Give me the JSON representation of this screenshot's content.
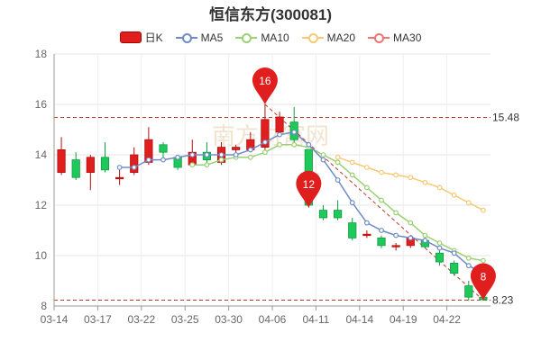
{
  "chart_data": {
    "type": "candlestick",
    "title": "恒信东方(300081)",
    "legend_position": "top-center",
    "grid": true,
    "ylim": [
      8,
      18
    ],
    "yticks": [
      "8",
      "10",
      "12",
      "14",
      "16",
      "18"
    ],
    "xtick_labels": [
      "03-14",
      "03-17",
      "03-22",
      "03-25",
      "03-30",
      "04-06",
      "04-11",
      "04-14",
      "04-19",
      "04-22"
    ],
    "xtick_index": [
      0,
      3,
      6,
      9,
      12,
      15,
      18,
      21,
      24,
      27
    ],
    "legend": [
      {
        "key": "k",
        "label": "日K",
        "color": "#e01e1e"
      },
      {
        "key": "ma5",
        "label": "MA5",
        "color": "#6e8bc8"
      },
      {
        "key": "ma10",
        "label": "MA10",
        "color": "#9ad173"
      },
      {
        "key": "ma20",
        "label": "MA20",
        "color": "#f7c974"
      },
      {
        "key": "ma30",
        "label": "MA30",
        "color": "#ef7373"
      }
    ],
    "candles": [
      {
        "o": 13.3,
        "c": 14.2,
        "h": 14.7,
        "l": 13.2
      },
      {
        "o": 13.8,
        "c": 13.1,
        "h": 14.1,
        "l": 13.0
      },
      {
        "o": 13.3,
        "c": 13.9,
        "h": 14.0,
        "l": 12.6
      },
      {
        "o": 13.9,
        "c": 13.4,
        "h": 14.5,
        "l": 13.3
      },
      {
        "o": 13.05,
        "c": 13.1,
        "h": 13.4,
        "l": 12.8
      },
      {
        "o": 13.3,
        "c": 14.0,
        "h": 14.3,
        "l": 13.2
      },
      {
        "o": 13.7,
        "c": 14.6,
        "h": 15.1,
        "l": 13.6
      },
      {
        "o": 14.4,
        "c": 14.1,
        "h": 14.5,
        "l": 13.8
      },
      {
        "o": 13.9,
        "c": 13.5,
        "h": 14.0,
        "l": 13.4
      },
      {
        "o": 13.6,
        "c": 14.1,
        "h": 14.6,
        "l": 13.5
      },
      {
        "o": 14.1,
        "c": 13.8,
        "h": 14.5,
        "l": 13.6
      },
      {
        "o": 13.7,
        "c": 14.3,
        "h": 14.5,
        "l": 13.6
      },
      {
        "o": 14.2,
        "c": 14.3,
        "h": 14.4,
        "l": 14.1
      },
      {
        "o": 14.2,
        "c": 14.6,
        "h": 14.9,
        "l": 14.1
      },
      {
        "o": 14.3,
        "c": 15.4,
        "h": 16.0,
        "l": 14.2
      },
      {
        "o": 14.9,
        "c": 15.5,
        "h": 15.7,
        "l": 14.8
      },
      {
        "o": 15.3,
        "c": 14.6,
        "h": 15.9,
        "l": 14.5
      },
      {
        "o": 14.2,
        "c": 12.0,
        "h": 14.3,
        "l": 11.9
      },
      {
        "o": 11.8,
        "c": 11.5,
        "h": 12.0,
        "l": 11.4
      },
      {
        "o": 11.8,
        "c": 11.5,
        "h": 12.2,
        "l": 11.4
      },
      {
        "o": 11.3,
        "c": 10.7,
        "h": 11.5,
        "l": 10.6
      },
      {
        "o": 10.8,
        "c": 10.85,
        "h": 11.0,
        "l": 10.7
      },
      {
        "o": 10.7,
        "c": 10.4,
        "h": 10.8,
        "l": 10.3
      },
      {
        "o": 10.35,
        "c": 10.4,
        "h": 10.5,
        "l": 10.2
      },
      {
        "o": 10.4,
        "c": 10.7,
        "h": 10.8,
        "l": 10.3
      },
      {
        "o": 10.6,
        "c": 10.35,
        "h": 10.8,
        "l": 10.3
      },
      {
        "o": 10.1,
        "c": 9.75,
        "h": 10.2,
        "l": 9.6
      },
      {
        "o": 9.7,
        "c": 9.3,
        "h": 9.8,
        "l": 9.2
      },
      {
        "o": 8.8,
        "c": 8.35,
        "h": 9.0,
        "l": 8.2
      },
      {
        "o": 8.35,
        "c": 8.25,
        "h": 8.4,
        "l": 8.23
      }
    ],
    "ma5": [
      null,
      null,
      null,
      null,
      13.5,
      13.5,
      13.8,
      13.8,
      13.9,
      14.0,
      14.0,
      14.0,
      14.0,
      14.2,
      14.5,
      14.8,
      14.9,
      14.4,
      13.8,
      13.0,
      12.1,
      11.3,
      11.0,
      10.8,
      10.7,
      10.6,
      10.3,
      10.1,
      9.6,
      9.3
    ],
    "ma10": [
      null,
      null,
      null,
      null,
      null,
      null,
      null,
      null,
      null,
      13.6,
      13.6,
      13.8,
      13.9,
      13.9,
      14.1,
      14.4,
      14.4,
      14.3,
      14.0,
      13.7,
      13.2,
      12.7,
      12.2,
      11.7,
      11.3,
      10.8,
      10.5,
      10.2,
      9.9,
      9.8
    ],
    "ma20": [
      null,
      null,
      null,
      null,
      null,
      null,
      null,
      null,
      null,
      null,
      null,
      null,
      null,
      null,
      null,
      null,
      null,
      null,
      null,
      13.9,
      13.7,
      13.5,
      13.3,
      13.2,
      13.1,
      12.9,
      12.7,
      12.4,
      12.1,
      11.8
    ],
    "max_marker": {
      "label": "16",
      "index": 14,
      "value": 16.0
    },
    "mid_marker": {
      "label": "12",
      "index": 17,
      "value": 11.9
    },
    "min_marker": {
      "label": "8",
      "index": 29,
      "value": 8.23
    },
    "ref_lines": [
      {
        "value": 15.48,
        "label": "15.48"
      },
      {
        "value": 8.23,
        "label": "8.23"
      }
    ],
    "watermark": "南方财富网"
  }
}
